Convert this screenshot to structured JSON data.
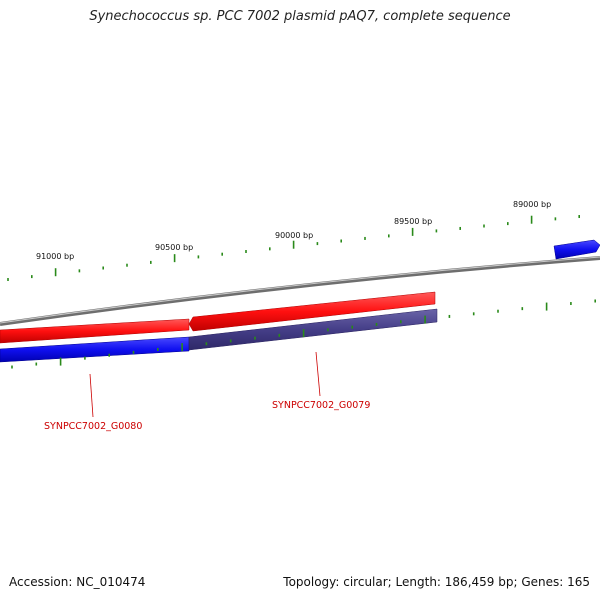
{
  "title": "Synechococcus sp. PCC 7002 plasmid pAQ7, complete sequence",
  "footer": {
    "accession": "Accession: NC_010474",
    "summary": "Topology: circular; Length: 186,459 bp; Genes: 165"
  },
  "scale_labels": [
    "91000 bp",
    "90500 bp",
    "90000 bp",
    "89500 bp",
    "89000 bp"
  ],
  "genes": [
    {
      "label": "SYNPCC7002_G0080"
    },
    {
      "label": "SYNPCC7002_G0079"
    }
  ],
  "colors": {
    "forward_cds": "#e8000a",
    "reverse_cds": "#0b08e0",
    "reverse_cds_shaded": "#48408a",
    "backbone": "#8a8a8a",
    "ticks": "#2a8a1a",
    "gene_label": "#cc0000"
  }
}
